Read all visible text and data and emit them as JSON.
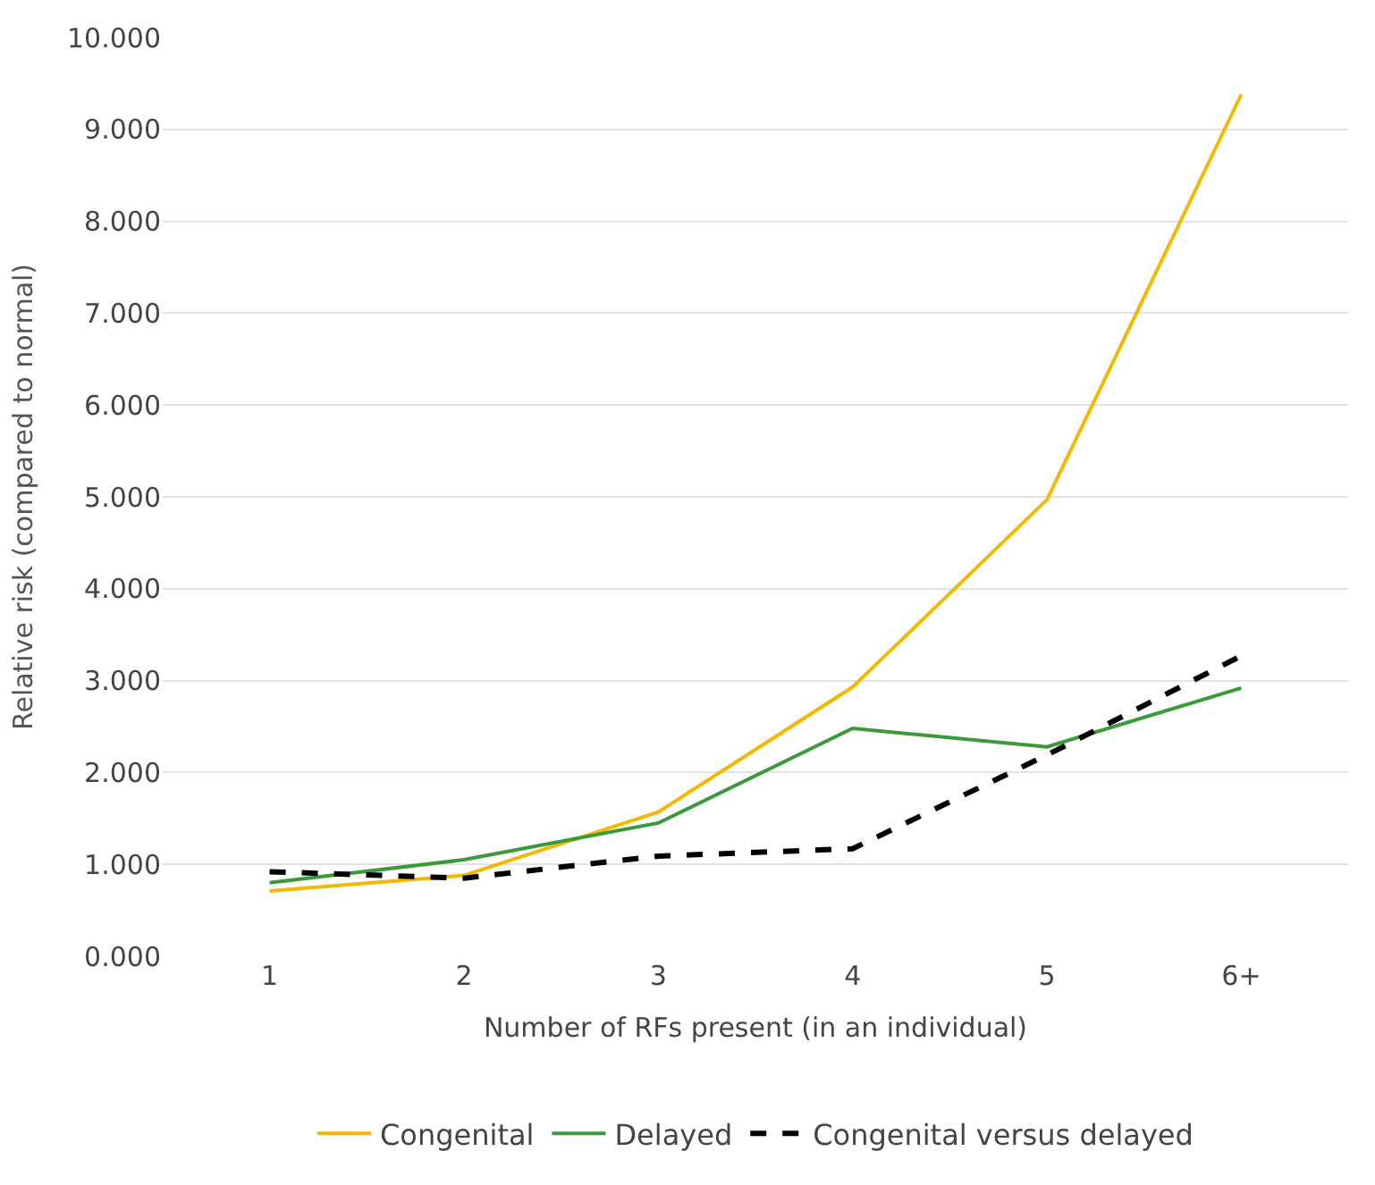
{
  "chart_data": {
    "type": "line",
    "xlabel": "Number of RFs present (in an individual)",
    "ylabel": "Relative risk (compared to normal)",
    "categories": [
      "1",
      "2",
      "3",
      "4",
      "5",
      "6+"
    ],
    "series": [
      {
        "name": "Congenital",
        "color": "#f5b800",
        "values": [
          0.71,
          0.88,
          1.57,
          2.93,
          4.97,
          9.38
        ]
      },
      {
        "name": "Delayed",
        "color": "#3a9a3a",
        "values": [
          0.8,
          1.05,
          1.45,
          2.48,
          2.28,
          2.92
        ]
      },
      {
        "name": "Congenital versus delayed",
        "color": "#000000",
        "line_style": "dashed",
        "values": [
          0.92,
          0.85,
          1.09,
          1.17,
          2.19,
          3.27
        ]
      }
    ],
    "ylim": [
      0,
      10
    ],
    "yticks": [
      {
        "value": 0,
        "label": "0.000"
      },
      {
        "value": 1,
        "label": "1.000"
      },
      {
        "value": 2,
        "label": "2.000"
      },
      {
        "value": 3,
        "label": "3.000"
      },
      {
        "value": 4,
        "label": "4.000"
      },
      {
        "value": 5,
        "label": "5.000"
      },
      {
        "value": 6,
        "label": "6.000"
      },
      {
        "value": 7,
        "label": "7.000"
      },
      {
        "value": 8,
        "label": "8.000"
      },
      {
        "value": 9,
        "label": "9.000"
      },
      {
        "value": 10,
        "label": "10.000"
      }
    ],
    "grid": "y",
    "legend": "bottom",
    "marker": "none",
    "line_style": "solid"
  }
}
